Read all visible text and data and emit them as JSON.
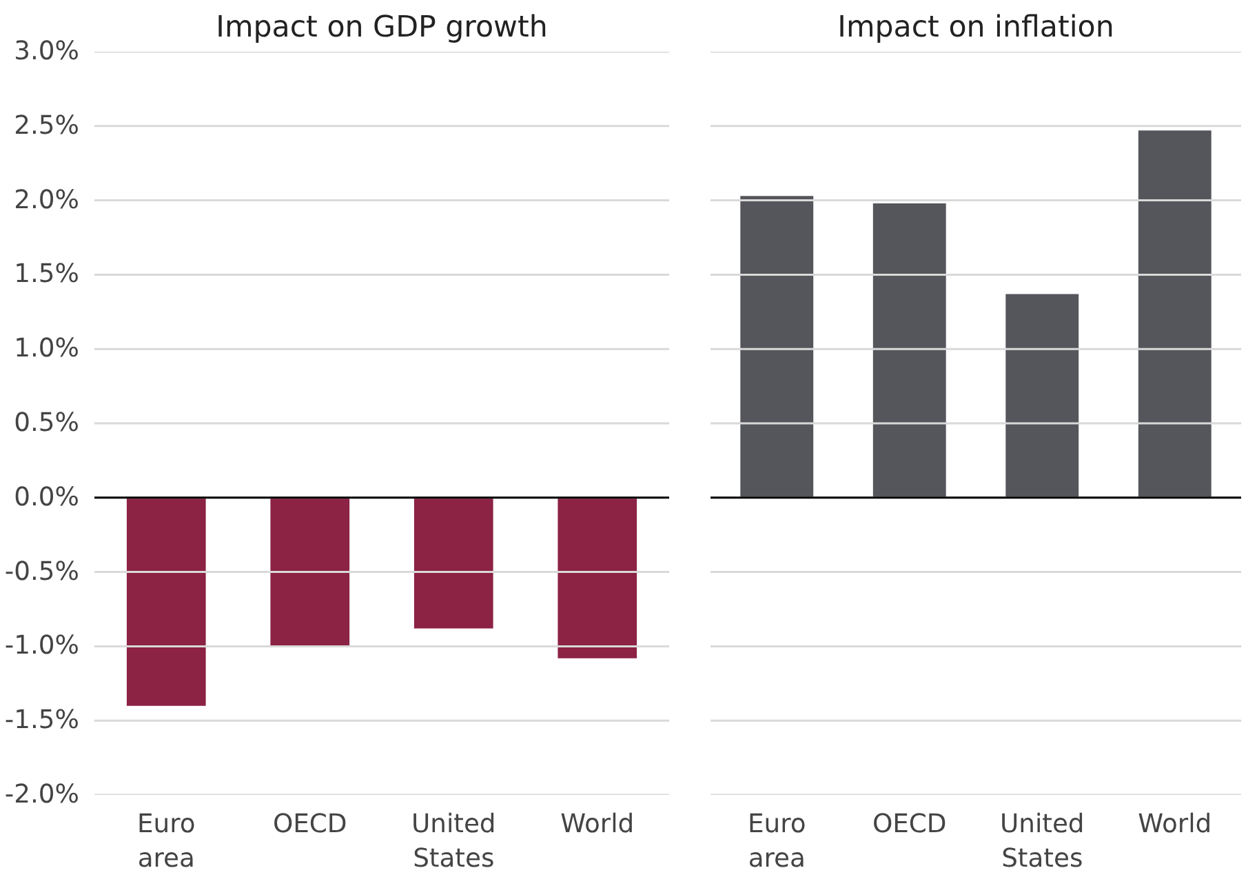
{
  "chart_data": [
    {
      "type": "bar",
      "title": "Impact on GDP growth",
      "categories": [
        "Euro area",
        "OECD",
        "United States",
        "World"
      ],
      "series": [
        {
          "color": "#8c2244",
          "values": [
            -1.4,
            -1.0,
            -0.88,
            -1.08
          ]
        }
      ],
      "ylim": [
        -2.0,
        3.0
      ],
      "yticks": [
        {
          "value": -2.0,
          "label": "-2.0%"
        },
        {
          "value": -1.5,
          "label": "-1.5%"
        },
        {
          "value": -1.0,
          "label": "-1.0%"
        },
        {
          "value": -0.5,
          "label": "-0.5%"
        },
        {
          "value": 0.0,
          "label": "0.0%"
        },
        {
          "value": 0.5,
          "label": "0.5%"
        },
        {
          "value": 1.0,
          "label": "1.0%"
        },
        {
          "value": 1.5,
          "label": "1.5%"
        },
        {
          "value": 2.0,
          "label": "2.0%"
        },
        {
          "value": 2.5,
          "label": "2.5%"
        },
        {
          "value": 3.0,
          "label": "3.0%"
        }
      ],
      "grid": "y",
      "ref_lines": [
        {
          "axis": "y",
          "value": 0.0,
          "color": "#000000"
        }
      ]
    },
    {
      "type": "bar",
      "title": "Impact on inflation",
      "categories": [
        "Euro area",
        "OECD",
        "United States",
        "World"
      ],
      "series": [
        {
          "color": "#54565b",
          "values": [
            2.03,
            1.98,
            1.37,
            2.47
          ]
        }
      ],
      "ylim": [
        -2.0,
        3.0
      ],
      "yticks": [
        -2.0,
        -1.5,
        -1.0,
        -0.5,
        0.0,
        0.5,
        1.0,
        1.5,
        2.0,
        2.5,
        3.0
      ],
      "grid": "y",
      "tick_labels": "x",
      "ref_lines": [
        {
          "axis": "y",
          "value": 0.0,
          "color": "#000000"
        }
      ]
    }
  ]
}
